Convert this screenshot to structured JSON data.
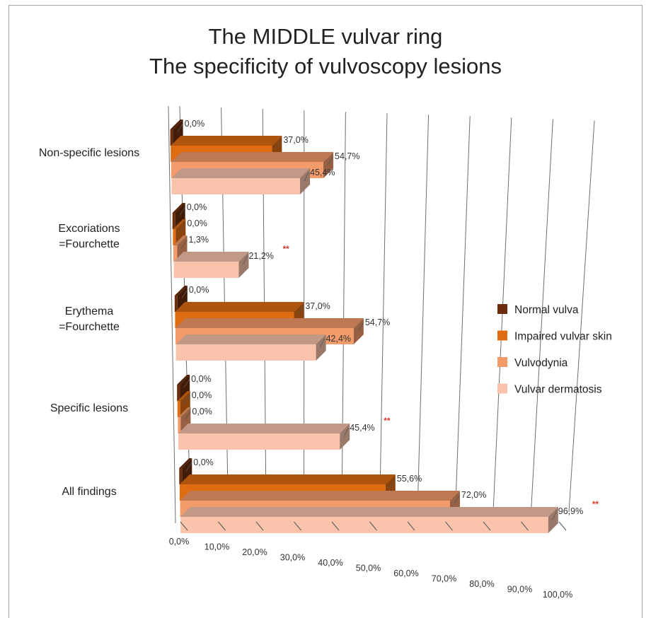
{
  "page": {
    "title_line1": "The MIDDLE vulvar ring",
    "title_line2": "The specificity of vulvoscopy lesions"
  },
  "chart_data": {
    "type": "bar",
    "orientation": "horizontal",
    "style": "3d-clustered",
    "title": "The MIDDLE vulvar ring\nThe specificity of vulvoscopy lesions",
    "xlabel": "",
    "ylabel": "",
    "xlim": [
      0,
      100
    ],
    "ticks": [
      "0,0%",
      "10,0%",
      "20,0%",
      "30,0%",
      "40,0%",
      "50,0%",
      "60,0%",
      "70,0%",
      "80,0%",
      "90,0%",
      "100,0%"
    ],
    "categories": [
      "Non-specific lesions",
      "Excoriations\n=Fourchette",
      "Erythema\n=Fourchette",
      "Specific lesions",
      "All findings"
    ],
    "series": [
      {
        "name": "Normal vulva",
        "color": "#6b2d0b",
        "values": [
          0.0,
          0.0,
          0.0,
          0.0,
          0.0
        ],
        "labels": [
          "0,0%",
          "0,0%",
          "0,0%",
          "0,0%",
          "0,0%"
        ]
      },
      {
        "name": "Impaired vulvar skin",
        "color": "#e06c12",
        "values": [
          37.0,
          0.0,
          37.0,
          0.0,
          55.6
        ],
        "labels": [
          "37,0%",
          "0,0%",
          "37,0%",
          "0,0%",
          "55,6%"
        ]
      },
      {
        "name": "Vulvodynia",
        "color": "#f39b6a",
        "values": [
          54.7,
          1.3,
          54.7,
          0.0,
          72.0
        ],
        "labels": [
          "54,7%",
          "1,3%",
          "54,7%",
          "0,0%",
          "72,0%"
        ]
      },
      {
        "name": "Vulvar dermatosis",
        "color": "#f9c3ac",
        "values": [
          45.4,
          21.2,
          42.4,
          45.4,
          96.9
        ],
        "labels": [
          "45,4%",
          "21,2%",
          "42,4%",
          "45,4%",
          "96,9%"
        ]
      }
    ],
    "significance_marks": [
      {
        "category": "Excoriations\n=Fourchette",
        "series": "Vulvar dermatosis",
        "text": "**"
      },
      {
        "category": "Specific lesions",
        "series": "Vulvar dermatosis",
        "text": "**"
      },
      {
        "category": "All findings",
        "series": "Vulvar dermatosis",
        "text": "**"
      }
    ],
    "legend": {
      "position": "right"
    },
    "grid": true
  }
}
